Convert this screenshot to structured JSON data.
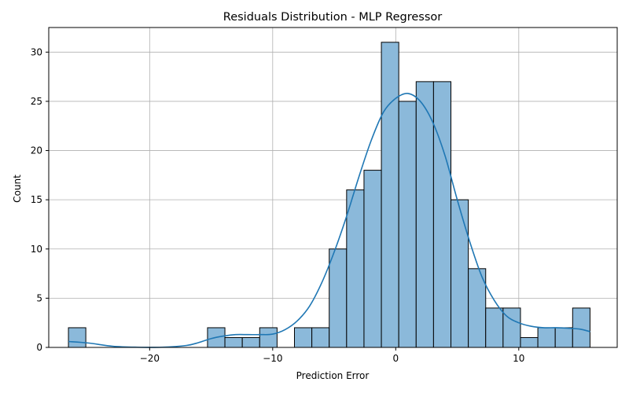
{
  "chart_data": {
    "type": "bar",
    "title": "Residuals Distribution - MLP Regressor",
    "xlabel": "Prediction Error",
    "ylabel": "Count",
    "xlim": [
      -28.2,
      18.0
    ],
    "ylim": [
      0,
      32.5
    ],
    "xticks": [
      -20,
      -10,
      0,
      10
    ],
    "xtick_labels": [
      "−20",
      "−10",
      "0",
      "10"
    ],
    "yticks": [
      0,
      5,
      10,
      15,
      20,
      25,
      30
    ],
    "ytick_labels": [
      "0",
      "5",
      "10",
      "15",
      "20",
      "25",
      "30"
    ],
    "grid": true,
    "bin_start": -26.6,
    "bin_width": 1.413,
    "counts": [
      2,
      0,
      0,
      0,
      0,
      0,
      0,
      0,
      2,
      1,
      1,
      2,
      0,
      2,
      2,
      10,
      16,
      18,
      31,
      25,
      27,
      27,
      15,
      8,
      4,
      4,
      1,
      2,
      2,
      4
    ],
    "kde": {
      "x": [
        -26.6,
        -25,
        -23,
        -21,
        -19,
        -17,
        -16,
        -15,
        -14,
        -13,
        -12,
        -11,
        -10,
        -9,
        -8,
        -7,
        -6,
        -5,
        -4,
        -3,
        -2,
        -1,
        0,
        1,
        2,
        3,
        4,
        5,
        6,
        7,
        8,
        9,
        10,
        11,
        12,
        13,
        14,
        15,
        15.8
      ],
      "y": [
        0.6,
        0.45,
        0.12,
        0.02,
        0.02,
        0.2,
        0.5,
        0.9,
        1.15,
        1.3,
        1.3,
        1.3,
        1.35,
        1.8,
        2.7,
        4.2,
        6.6,
        9.7,
        13.3,
        17.3,
        21.0,
        23.9,
        25.3,
        25.8,
        25.0,
        22.9,
        19.5,
        15.0,
        10.8,
        7.2,
        4.8,
        3.2,
        2.5,
        2.15,
        2.0,
        2.0,
        1.95,
        1.85,
        1.6
      ]
    },
    "colors": {
      "bar_fill": "#8bb9da",
      "bar_edge": "#000000",
      "kde_line": "#1f77b4",
      "grid": "#b0b0b0"
    }
  }
}
